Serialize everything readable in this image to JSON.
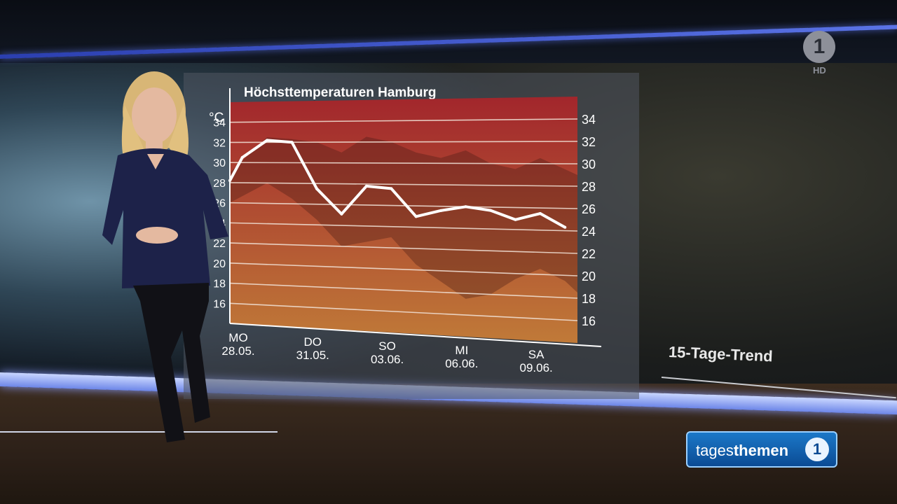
{
  "broadcaster": {
    "logo_text": "1",
    "hd_label": "HD"
  },
  "show": {
    "name_light": "tages",
    "name_bold": "themen",
    "badge": "1"
  },
  "side_panel": {
    "title": "15-Tage-Trend"
  },
  "colors": {
    "band_top": "#a2262c",
    "band_bottom": "#c07a38",
    "line": "#ffffff",
    "grid": "#f2e3d8"
  },
  "chart_data": {
    "type": "line",
    "title": "Höchsttemperaturen Hamburg",
    "ylabel": "°C",
    "ylim": [
      14,
      36
    ],
    "yticks_right": [
      34,
      32,
      30,
      28,
      26,
      24,
      22,
      20,
      18,
      16
    ],
    "yticks_left": [
      "34",
      "32",
      "30",
      "28",
      "26",
      "24",
      "22",
      "20",
      "18",
      "16"
    ],
    "xlim": [
      0,
      14
    ],
    "x_ticks": [
      {
        "x": 0,
        "day": "MO",
        "date": "28.05."
      },
      {
        "x": 3,
        "day": "DO",
        "date": "31.05."
      },
      {
        "x": 6,
        "day": "SO",
        "date": "03.06."
      },
      {
        "x": 9,
        "day": "MI",
        "date": "06.06."
      },
      {
        "x": 12,
        "day": "SA",
        "date": "09.06."
      }
    ],
    "series": [
      {
        "x": [
          0,
          0.5,
          1.5,
          2.5,
          3.5,
          4.5,
          5.5,
          6.5,
          7.5,
          8.5,
          9.5,
          10.5,
          11.5,
          12.5,
          13.5
        ],
        "values": [
          28.2,
          30.5,
          32.2,
          32.0,
          27.5,
          25.1,
          27.8,
          27.6,
          25.0,
          25.6,
          26.0,
          25.7,
          24.9,
          25.5,
          24.3
        ]
      }
    ],
    "range_band": {
      "x": [
        0,
        1.5,
        2.5,
        3.5,
        4.5,
        5.5,
        6.5,
        7.5,
        8.5,
        9.5,
        10.5,
        11.5,
        12.5,
        13.5,
        14
      ],
      "upper": [
        29.0,
        32.5,
        32.3,
        32.0,
        31.0,
        32.5,
        32.0,
        31.0,
        30.5,
        31.2,
        30.0,
        29.5,
        30.5,
        29.5,
        29.0
      ],
      "lower": [
        26.0,
        28.0,
        26.5,
        24.5,
        22.0,
        22.5,
        23.0,
        20.5,
        19.0,
        17.5,
        18.0,
        19.5,
        20.5,
        19.5,
        18.5
      ]
    },
    "grid": true
  }
}
